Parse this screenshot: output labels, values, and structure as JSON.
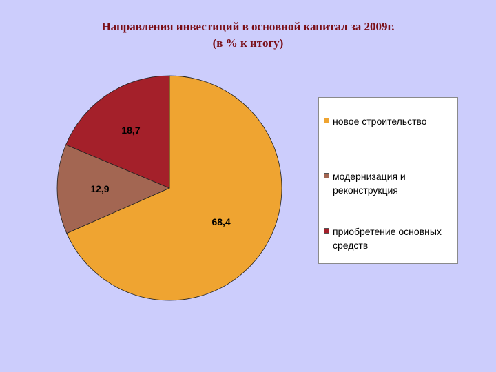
{
  "header": {
    "title_line1": "Направления инвестиций в основной капитал за 2009г.",
    "title_line2": "(в % к итогу)"
  },
  "chart_data": {
    "type": "pie",
    "title": "Направления инвестиций в основной капитал за 2009г. (в % к итогу)",
    "categories": [
      "новое строительство",
      "модернизация и реконструкция",
      "приобретение основных средств"
    ],
    "values": [
      68.4,
      12.9,
      18.7
    ],
    "value_labels": [
      "68,4",
      "12,9",
      "18,7"
    ],
    "colors": [
      "#efa431",
      "#a36652",
      "#a4202a"
    ],
    "legend_placement": "right"
  },
  "legend": {
    "items": [
      {
        "label": "новое строительство",
        "color": "#efa431"
      },
      {
        "label": "модернизация и реконструкция",
        "color": "#a36652"
      },
      {
        "label": "приобретение основных средств",
        "color": "#a4202a"
      }
    ]
  }
}
